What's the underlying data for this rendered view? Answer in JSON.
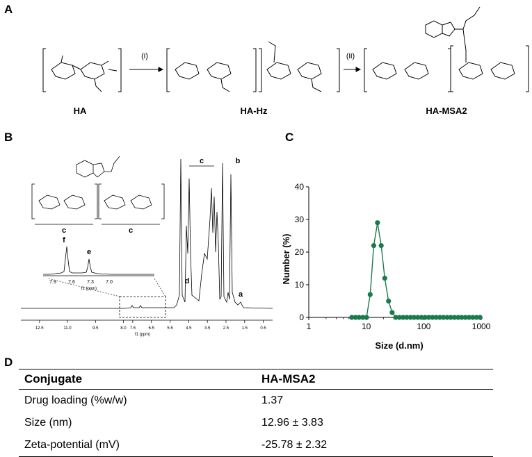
{
  "panels": {
    "a": "A",
    "b": "B",
    "c": "C",
    "d": "D"
  },
  "scheme": {
    "compounds": [
      "HA",
      "HA-Hz",
      "HA-MSA2"
    ],
    "steps": [
      "(i)",
      "(ii)"
    ]
  },
  "nmr": {
    "axis_label": "f1 (ppm)",
    "ticks": [
      "12.5",
      "11.0",
      "9.5",
      "8.0",
      "7.5",
      "6.5",
      "5.5",
      "4.5",
      "3.5",
      "2.5",
      "1.5",
      "0.5"
    ],
    "peak_labels": {
      "a": "a",
      "b": "b",
      "c": "c",
      "d": "d"
    },
    "inset": {
      "axis_label": "f1 (ppm)",
      "ticks": [
        "7.9",
        "7.6",
        "7.3",
        "7.0"
      ],
      "peaks": [
        "f",
        "e"
      ]
    }
  },
  "chart_data": {
    "type": "scatter",
    "title": "",
    "xlabel": "Size (d.nm)",
    "ylabel": "Number (%)",
    "xscale": "log",
    "xlim": [
      1,
      1000
    ],
    "ylim": [
      0,
      40
    ],
    "xticks": [
      "1",
      "10",
      "100",
      "1000"
    ],
    "yticks": [
      "0",
      "10",
      "20",
      "30",
      "40"
    ],
    "color": "#1a7a4c",
    "series": [
      {
        "x": [
          5.6,
          6.5,
          7.5,
          8.7,
          10.1,
          11.7,
          13.5,
          15.7,
          18.2,
          21.0,
          24.4,
          28.2,
          32.7,
          37.8,
          43.8,
          50.7,
          58.8,
          68.1,
          78.8,
          91.3,
          105.7,
          122.4,
          141.8,
          164.2,
          190.1,
          220.2,
          255.0,
          295.3,
          342.0,
          396.1,
          458.7,
          531.2,
          615.1,
          712.4,
          825.0,
          955.0
        ],
        "y": [
          0,
          0,
          0,
          0,
          0,
          7.0,
          22.0,
          29.0,
          22.0,
          12.0,
          5.0,
          1.5,
          0,
          0,
          0,
          0,
          0,
          0,
          0,
          0,
          0,
          0,
          0,
          0,
          0,
          0,
          0,
          0,
          0,
          0,
          0,
          0,
          0,
          0,
          0,
          0
        ]
      }
    ]
  },
  "table": {
    "headers": [
      "Conjugate",
      "HA-MSA2"
    ],
    "rows": [
      [
        "Drug loading (%w/w)",
        "1.37"
      ],
      [
        "Size (nm)",
        "12.96 ± 3.83"
      ],
      [
        "Zeta-potential (mV)",
        "-25.78 ± 2.32"
      ]
    ]
  }
}
